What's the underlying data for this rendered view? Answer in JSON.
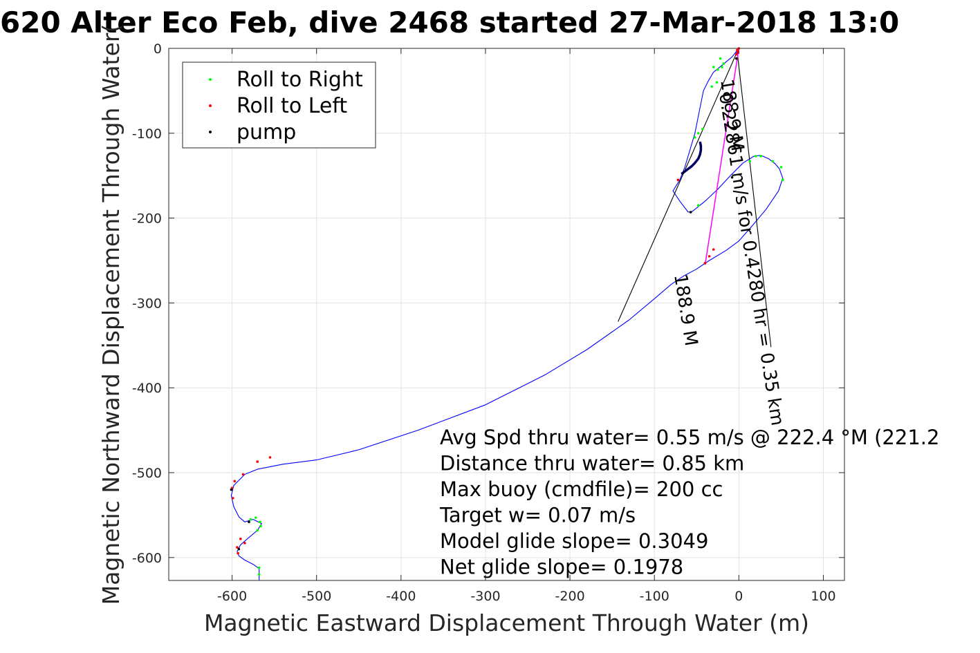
{
  "chart_data": {
    "type": "line",
    "title": "620 Alter Eco Feb, dive 2468 started 27-Mar-2018 13:0",
    "xlabel": "Magnetic Eastward Displacement Through Water (m)",
    "ylabel": "Magnetic Northward Displacement Through Water(",
    "xlim": [
      -675,
      125
    ],
    "ylim": [
      -627,
      0
    ],
    "x_ticks": [
      -600,
      -500,
      -400,
      -300,
      -200,
      -100,
      0,
      100
    ],
    "y_ticks": [
      0,
      -100,
      -200,
      -300,
      -400,
      -500,
      -600
    ],
    "x_tick_labels": [
      "-600",
      "-500",
      "-400",
      "-300",
      "-200",
      "-100",
      "0",
      "100"
    ],
    "y_tick_labels": [
      "0",
      "-100",
      "-200",
      "-300",
      "-400",
      "-500",
      "-600"
    ],
    "grid": true,
    "legend_placement": "top-left",
    "colors": {
      "track": "#0000ff",
      "roll_right": "#00ff00",
      "roll_left": "#ff0000",
      "pump": "#000000",
      "heading_line": "#000000",
      "current_line": "#ff00ff"
    },
    "legend": [
      {
        "label": "Roll to Right",
        "color": "#00ff00"
      },
      {
        "label": "Roll to Left",
        "color": "#ff0000"
      },
      {
        "label": "pump",
        "color": "#000000"
      }
    ],
    "series": [
      {
        "name": "track",
        "x": [
          0,
          -8,
          -20,
          -30,
          -36,
          -42,
          -45,
          -48,
          -52,
          -58,
          -64,
          -70,
          -75,
          -78,
          -70,
          -60,
          -55,
          -50,
          -40,
          -25,
          -10,
          5,
          18,
          26,
          35,
          43,
          48,
          52,
          47,
          32,
          15,
          0,
          -15,
          -35,
          -50,
          -65,
          -80,
          -100,
          -130,
          -180,
          -230,
          -300,
          -380,
          -450,
          -500,
          -540,
          -555,
          -570,
          -585,
          -598,
          -601,
          -598,
          -592,
          -585,
          -575,
          -565,
          -570,
          -582,
          -590,
          -594,
          -592,
          -585,
          -575,
          -568,
          -568
        ],
        "y": [
          0,
          -10,
          -20,
          -28,
          -38,
          -50,
          -65,
          -80,
          -100,
          -120,
          -140,
          -155,
          -163,
          -168,
          -180,
          -193,
          -192,
          -188,
          -180,
          -166,
          -150,
          -135,
          -127,
          -126,
          -130,
          -136,
          -142,
          -153,
          -168,
          -190,
          -210,
          -227,
          -238,
          -250,
          -260,
          -268,
          -278,
          -295,
          -320,
          -355,
          -385,
          -420,
          -450,
          -473,
          -485,
          -490,
          -493,
          -496,
          -502,
          -515,
          -527,
          -540,
          -552,
          -558,
          -555,
          -560,
          -568,
          -578,
          -585,
          -593,
          -598,
          -603,
          -608,
          -613,
          -627
        ]
      },
      {
        "name": "pump",
        "x": [
          -68,
          -64,
          -60,
          -56,
          -52,
          -48,
          -46,
          -45,
          -45,
          -46
        ],
        "y": [
          -148,
          -145,
          -142,
          -139,
          -135,
          -130,
          -125,
          -120,
          -115,
          -110
        ]
      },
      {
        "name": "heading_left",
        "x": [
          -143,
          -2
        ],
        "y": [
          -322,
          -4
        ]
      },
      {
        "name": "heading_right",
        "x": [
          38,
          -2
        ],
        "y": [
          -352,
          -4
        ]
      },
      {
        "name": "current",
        "x": [
          0,
          -40
        ],
        "y": [
          0,
          -255
        ]
      }
    ],
    "markers_roll_right": {
      "x": [
        -30,
        -25,
        -20,
        -18,
        -22,
        -26,
        -32,
        -43,
        -48,
        -52,
        -48,
        13,
        20,
        26,
        40,
        50,
        52,
        -567,
        -566,
        -570,
        -572,
        -578,
        -568,
        -568
      ],
      "y": [
        -22,
        -25,
        -22,
        -18,
        -12,
        -40,
        -45,
        -95,
        -100,
        -105,
        -185,
        -133,
        -127,
        -127,
        -133,
        -140,
        -155,
        -558,
        -563,
        -568,
        -553,
        -555,
        -612,
        -620
      ]
    },
    "markers_roll_left": {
      "x": [
        -2,
        0,
        -1,
        -72,
        -30,
        -35,
        -40,
        -555,
        -570,
        -587,
        -597,
        -600,
        -599,
        -590,
        -585,
        -594,
        -593,
        -3
      ],
      "y": [
        -2,
        0,
        -4,
        -155,
        -237,
        -245,
        -253,
        -482,
        -487,
        -502,
        -510,
        -518,
        -530,
        -578,
        -583,
        -588,
        -595,
        -7
      ]
    },
    "markers_pump": {
      "x": [
        -57,
        -8,
        -580,
        -601,
        -592,
        -3
      ],
      "y": [
        -193,
        -152,
        -558,
        -520,
        -590,
        -12
      ]
    },
    "annotations": {
      "current_label": "0.22861 m/s for 0.4280 hr = 0.35 km",
      "current_bearing_label": "188.9 M",
      "current_bearing_label_2": "188.9 M"
    },
    "stats": [
      "Avg Spd thru water= 0.55 m/s @ 222.4 °M (221.2",
      "Distance thru water= 0.85 km",
      "Max buoy (cmdfile)= 200 cc",
      "Target w= 0.07 m/s",
      "Model glide slope= 0.3049",
      "Net glide slope= 0.1978"
    ]
  }
}
